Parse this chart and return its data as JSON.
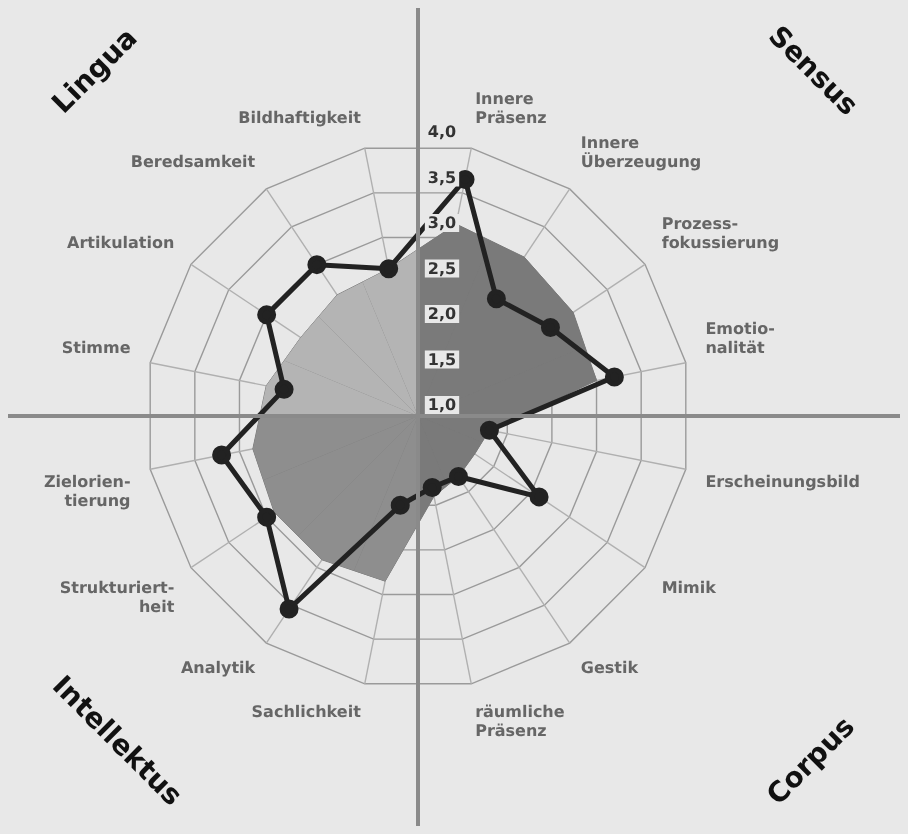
{
  "chart_data": {
    "type": "radar",
    "categories": [
      "Innere Präsenz",
      "Innere Überzeugung",
      "Prozess-fokussierung",
      "Emotio-nalität",
      "Erscheinungsbild",
      "Mimik",
      "Gestik",
      "räumliche Präsenz",
      "Sachlichkeit",
      "Analytik",
      "Strukturiert-heit",
      "Zielorien-tierung",
      "Stimme",
      "Artikulation",
      "Beredsamkeit",
      "Bildhaftigkeit"
    ],
    "series": [
      {
        "colors": [
          "#7a7a7a",
          "#7a7a7a",
          "#7a7a7a",
          "#7a7a7a",
          "#7a7a7a",
          "#7a7a7a",
          "#7a7a7a",
          "#7a7a7a",
          "#8e8e8e",
          "#8e8e8e",
          "#8e8e8e",
          "#8e8e8e",
          "#b4b4b4",
          "#b4b4b4",
          "#b4b4b4",
          "#b4b4b4"
        ],
        "values": [
          3.15,
          3.1,
          3.05,
          3.0,
          1.8,
          1.75,
          1.8,
          1.9,
          2.85,
          2.9,
          2.9,
          2.85,
          2.7,
          2.55,
          2.6,
          2.65
        ]
      },
      {
        "color": "#222222",
        "values": [
          3.65,
          2.55,
          2.75,
          3.2,
          1.8,
          2.6,
          1.8,
          1.8,
          2.0,
          3.55,
          3.0,
          3.2,
          2.5,
          3.0,
          3.0,
          2.65
        ]
      }
    ],
    "ylim": [
      1,
      4
    ],
    "yticks": [
      {
        "value": 1,
        "label": "1,0"
      },
      {
        "value": 1.5,
        "label": "1,5"
      },
      {
        "value": 2,
        "label": "2,0"
      },
      {
        "value": 2.5,
        "label": "2,5"
      },
      {
        "value": 3,
        "label": "3,0"
      },
      {
        "value": 3.5,
        "label": "3,5"
      },
      {
        "value": 4,
        "label": "4,0"
      }
    ],
    "grid": true,
    "legend": false,
    "marker": "circle",
    "annotations": [
      "Sensus",
      "Corpus",
      "Intellektus",
      "Lingua"
    ]
  }
}
